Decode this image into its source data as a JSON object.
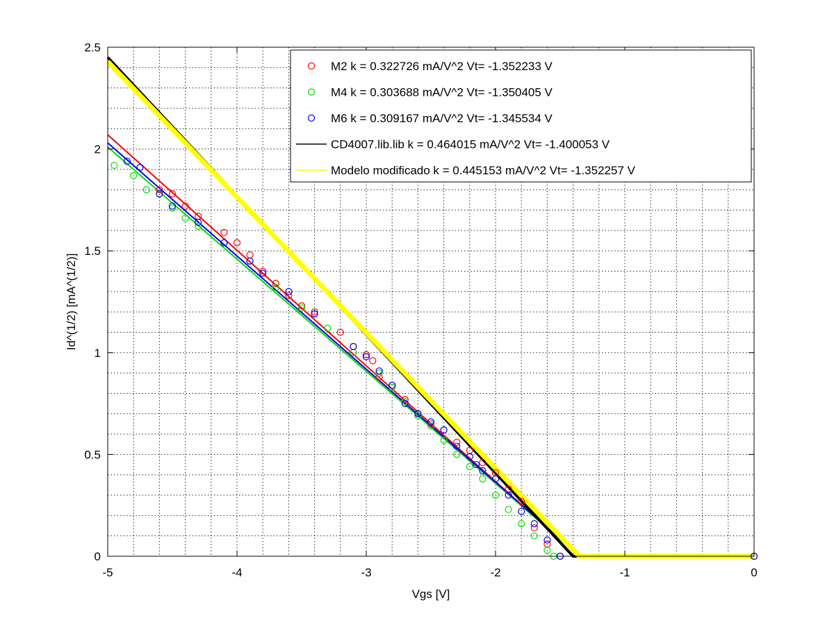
{
  "chart_data": {
    "type": "scatter",
    "title": "",
    "xlabel": "Vgs [V]",
    "ylabel": "Id^(1/2) [mA^(1/2)]",
    "xlim": [
      -5,
      0
    ],
    "ylim": [
      0,
      2.5
    ],
    "grid": true,
    "legend_position": "top-right",
    "x_ticks": [
      -5,
      -4,
      -3,
      -2,
      -1,
      0
    ],
    "y_ticks": [
      0,
      0.5,
      1,
      1.5,
      2,
      2.5
    ],
    "x_tick_labels": [
      "-5",
      "-4",
      "-3",
      "-2",
      "-1",
      "0"
    ],
    "y_tick_labels": [
      "0",
      "0.5",
      "1",
      "1.5",
      "2",
      "2.5"
    ],
    "series": [
      {
        "name": "M2 k = 0.322726 mA/V^2  Vt= -1.352233 V",
        "kind": "markers",
        "color": "#ff0000",
        "x": [
          -4.6,
          -4.5,
          -4.4,
          -4.3,
          -4.1,
          -4.0,
          -3.9,
          -3.8,
          -3.7,
          -3.6,
          -3.5,
          -3.4,
          -3.2,
          -3.1,
          -3.0,
          -2.95,
          -2.9,
          -2.8,
          -2.7,
          -2.6,
          -2.5,
          -2.4,
          -2.3,
          -2.2,
          -2.1,
          -2.0,
          -1.9,
          -1.8,
          -1.7,
          -1.6,
          -1.5,
          0
        ],
        "y": [
          1.8,
          1.78,
          1.72,
          1.67,
          1.59,
          1.54,
          1.48,
          1.4,
          1.34,
          1.28,
          1.23,
          1.2,
          1.1,
          1.03,
          0.99,
          0.96,
          0.88,
          0.84,
          0.77,
          0.7,
          0.65,
          0.62,
          0.56,
          0.52,
          0.46,
          0.41,
          0.33,
          0.27,
          0.14,
          0.06,
          0.0,
          0.0
        ]
      },
      {
        "name": "M4 k = 0.303688 mA/V^2  Vt= -1.350405 V",
        "kind": "markers",
        "color": "#00dd00",
        "x": [
          -4.95,
          -4.8,
          -4.7,
          -4.6,
          -4.5,
          -4.4,
          -4.3,
          -4.1,
          -3.9,
          -3.7,
          -3.5,
          -3.3,
          -3.1,
          -2.9,
          -2.8,
          -2.7,
          -2.6,
          -2.5,
          -2.4,
          -2.3,
          -2.2,
          -2.1,
          -2.0,
          -1.9,
          -1.8,
          -1.7,
          -1.6,
          -1.55,
          0
        ],
        "y": [
          1.92,
          1.87,
          1.8,
          1.78,
          1.71,
          1.66,
          1.62,
          1.54,
          1.45,
          1.32,
          1.22,
          1.12,
          1.0,
          0.9,
          0.83,
          0.76,
          0.69,
          0.64,
          0.57,
          0.5,
          0.44,
          0.38,
          0.3,
          0.23,
          0.16,
          0.1,
          0.03,
          0.0,
          0.0
        ]
      },
      {
        "name": "M6 k = 0.309167 mA/V^2  Vt= -1.345534 V",
        "kind": "markers",
        "color": "#0000ff",
        "x": [
          -4.85,
          -4.75,
          -4.6,
          -4.5,
          -4.3,
          -4.1,
          -3.9,
          -3.8,
          -3.6,
          -3.4,
          -3.1,
          -3.0,
          -2.9,
          -2.8,
          -2.7,
          -2.6,
          -2.5,
          -2.4,
          -2.3,
          -2.2,
          -2.15,
          -2.1,
          -2.0,
          -1.9,
          -1.8,
          -1.7,
          -1.6,
          -1.5,
          0
        ],
        "y": [
          1.94,
          1.91,
          1.78,
          1.72,
          1.64,
          1.54,
          1.45,
          1.39,
          1.3,
          1.19,
          1.03,
          0.98,
          0.91,
          0.84,
          0.75,
          0.7,
          0.66,
          0.62,
          0.54,
          0.49,
          0.45,
          0.42,
          0.38,
          0.3,
          0.22,
          0.16,
          0.08,
          0.0,
          0.0
        ]
      },
      {
        "name": "CD4007.lib.lib k = 0.464015 mA/V^2  Vt= -1.400053 V",
        "kind": "line",
        "color": "#000000",
        "x": [
          -5,
          -1.400053,
          0
        ],
        "y": [
          2.45,
          0,
          0
        ]
      },
      {
        "name": "Modelo modificado k = 0.445153 mA/V^2  Vt= -1.352257 V",
        "kind": "line",
        "color": "#ffff00",
        "x": [
          -5,
          -1.352257,
          0
        ],
        "y": [
          2.43,
          0,
          0
        ]
      }
    ],
    "fit_lines": [
      {
        "color": "#ff0000",
        "x": [
          -5,
          -1.352233
        ],
        "y": [
          2.07,
          0
        ]
      },
      {
        "color": "#00dd00",
        "x": [
          -5,
          -1.350405
        ],
        "y": [
          2.01,
          0
        ]
      },
      {
        "color": "#0000ff",
        "x": [
          -5,
          -1.345534
        ],
        "y": [
          2.03,
          0
        ]
      }
    ]
  }
}
